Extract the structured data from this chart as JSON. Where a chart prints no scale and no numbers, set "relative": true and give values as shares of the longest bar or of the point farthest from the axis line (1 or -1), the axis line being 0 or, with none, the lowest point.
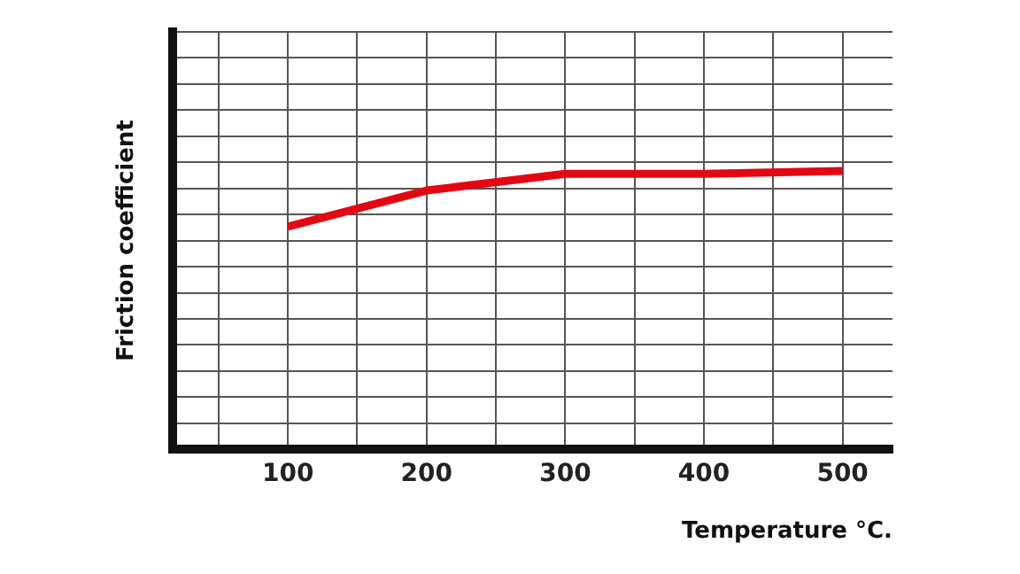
{
  "chart_data": {
    "type": "line",
    "xlabel": "Temperature °C.",
    "ylabel": "Friction coefficient",
    "relative": true,
    "x": [
      100,
      200,
      300,
      400,
      500
    ],
    "series": [
      {
        "color": "#e30613",
        "values": [
          0.8,
          0.93,
          0.99,
          0.99,
          1
        ]
      }
    ],
    "xlim": [
      17,
      536
    ],
    "xticks": [
      {
        "value": 50,
        "label": null
      },
      100,
      {
        "value": 150,
        "label": null
      },
      200,
      {
        "value": 250,
        "label": null
      },
      300,
      {
        "value": 350,
        "label": null
      },
      400,
      {
        "value": 450,
        "label": null
      },
      500
    ],
    "grid": true,
    "legend": false,
    "marker": "none",
    "line_style": "solid"
  }
}
